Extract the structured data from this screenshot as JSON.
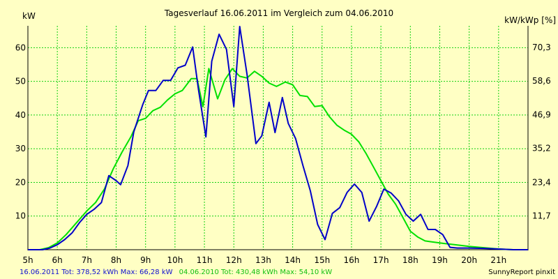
{
  "chart_data": {
    "type": "line",
    "title": "Tagesverlauf 16.06.2011 im Vergleich zum 04.06.2010",
    "ylabel_left": "kW",
    "ylabel_right": "kW/kWp [%]",
    "xlim": [
      5,
      22
    ],
    "ylim": [
      0,
      66.5
    ],
    "x_ticks": [
      "5h",
      "6h",
      "7h",
      "8h",
      "9h",
      "10h",
      "11h",
      "12h",
      "13h",
      "14h",
      "15h",
      "16h",
      "17h",
      "18h",
      "19h",
      "20h",
      "21h"
    ],
    "y_ticks_left": [
      "10",
      "20",
      "30",
      "40",
      "50",
      "60"
    ],
    "y_ticks_right": [
      {
        "label": "11,7",
        "kw": 10.0
      },
      {
        "label": "23,4",
        "kw": 20.0
      },
      {
        "label": "35,2",
        "kw": 30.1
      },
      {
        "label": "46,9",
        "kw": 40.1
      },
      {
        "label": "58,6",
        "kw": 50.1
      },
      {
        "label": "70,3",
        "kw": 60.1
      }
    ],
    "grid": true,
    "series": [
      {
        "name": "16.06.2011",
        "color": "#0000C8",
        "points": [
          [
            5.0,
            0.0
          ],
          [
            5.5,
            0.0
          ],
          [
            5.75,
            0.5
          ],
          [
            6.0,
            1.5
          ],
          [
            6.25,
            3.0
          ],
          [
            6.5,
            5.0
          ],
          [
            6.75,
            8.0
          ],
          [
            7.0,
            10.5
          ],
          [
            7.25,
            12.0
          ],
          [
            7.5,
            14.0
          ],
          [
            7.75,
            22.0
          ],
          [
            8.0,
            20.5
          ],
          [
            8.15,
            19.3
          ],
          [
            8.4,
            25.0
          ],
          [
            8.6,
            35.0
          ],
          [
            8.9,
            43.0
          ],
          [
            9.1,
            47.3
          ],
          [
            9.35,
            47.3
          ],
          [
            9.6,
            50.3
          ],
          [
            9.85,
            50.3
          ],
          [
            10.1,
            54.0
          ],
          [
            10.35,
            54.8
          ],
          [
            10.6,
            60.2
          ],
          [
            10.8,
            47.5
          ],
          [
            11.05,
            33.5
          ],
          [
            11.25,
            56.0
          ],
          [
            11.5,
            64.0
          ],
          [
            11.75,
            59.5
          ],
          [
            12.0,
            42.5
          ],
          [
            12.2,
            66.3
          ],
          [
            12.45,
            52.0
          ],
          [
            12.75,
            31.5
          ],
          [
            12.95,
            33.8
          ],
          [
            13.2,
            43.8
          ],
          [
            13.4,
            34.8
          ],
          [
            13.65,
            45.2
          ],
          [
            13.85,
            37.5
          ],
          [
            14.1,
            33.0
          ],
          [
            14.35,
            25.0
          ],
          [
            14.6,
            17.5
          ],
          [
            14.85,
            7.5
          ],
          [
            15.1,
            3.0
          ],
          [
            15.35,
            10.8
          ],
          [
            15.6,
            12.5
          ],
          [
            15.85,
            17.0
          ],
          [
            16.1,
            19.5
          ],
          [
            16.35,
            17.0
          ],
          [
            16.6,
            8.5
          ],
          [
            16.85,
            12.8
          ],
          [
            17.1,
            18.0
          ],
          [
            17.35,
            16.8
          ],
          [
            17.6,
            14.5
          ],
          [
            17.85,
            10.5
          ],
          [
            18.1,
            8.5
          ],
          [
            18.35,
            10.5
          ],
          [
            18.6,
            6.0
          ],
          [
            18.85,
            6.0
          ],
          [
            19.1,
            4.5
          ],
          [
            19.35,
            0.7
          ],
          [
            19.6,
            0.5
          ],
          [
            20.0,
            0.5
          ],
          [
            20.5,
            0.4
          ],
          [
            21.0,
            0.2
          ],
          [
            21.5,
            0.0
          ],
          [
            22.0,
            0.0
          ]
        ]
      },
      {
        "name": "04.06.2010",
        "color": "#00E000",
        "points": [
          [
            5.0,
            0.0
          ],
          [
            5.4,
            0.0
          ],
          [
            5.7,
            0.6
          ],
          [
            6.0,
            2.0
          ],
          [
            6.3,
            4.5
          ],
          [
            6.6,
            7.5
          ],
          [
            7.0,
            11.5
          ],
          [
            7.3,
            14.0
          ],
          [
            7.6,
            18.0
          ],
          [
            7.9,
            24.0
          ],
          [
            8.2,
            29.0
          ],
          [
            8.5,
            33.5
          ],
          [
            8.75,
            38.3
          ],
          [
            9.0,
            39.0
          ],
          [
            9.25,
            41.3
          ],
          [
            9.5,
            42.3
          ],
          [
            9.75,
            44.5
          ],
          [
            10.0,
            46.3
          ],
          [
            10.25,
            47.3
          ],
          [
            10.55,
            50.8
          ],
          [
            10.75,
            50.8
          ],
          [
            10.95,
            42.5
          ],
          [
            11.15,
            53.8
          ],
          [
            11.45,
            44.8
          ],
          [
            11.7,
            50.5
          ],
          [
            11.95,
            53.8
          ],
          [
            12.2,
            51.5
          ],
          [
            12.45,
            51.0
          ],
          [
            12.7,
            53.0
          ],
          [
            12.95,
            51.5
          ],
          [
            13.2,
            49.5
          ],
          [
            13.45,
            48.5
          ],
          [
            13.75,
            49.8
          ],
          [
            14.0,
            49.0
          ],
          [
            14.25,
            45.8
          ],
          [
            14.5,
            45.5
          ],
          [
            14.75,
            42.5
          ],
          [
            15.0,
            42.8
          ],
          [
            15.25,
            39.5
          ],
          [
            15.5,
            37.0
          ],
          [
            15.75,
            35.5
          ],
          [
            16.0,
            34.3
          ],
          [
            16.25,
            32.0
          ],
          [
            16.5,
            28.5
          ],
          [
            16.75,
            24.5
          ],
          [
            17.0,
            20.5
          ],
          [
            17.25,
            16.5
          ],
          [
            17.5,
            13.5
          ],
          [
            17.75,
            9.5
          ],
          [
            18.0,
            5.5
          ],
          [
            18.25,
            3.8
          ],
          [
            18.5,
            2.6
          ],
          [
            18.75,
            2.3
          ],
          [
            19.0,
            2.0
          ],
          [
            19.5,
            1.5
          ],
          [
            20.0,
            1.0
          ],
          [
            20.5,
            0.6
          ],
          [
            21.0,
            0.2
          ],
          [
            21.5,
            0.0
          ],
          [
            22.0,
            0.0
          ]
        ]
      }
    ]
  },
  "footer": {
    "series1_label": "16.06.2011 Tot: 378,52 kWh Max: 66,28 kW",
    "series2_label": "04.06.2010 Tot: 430,48 kWh Max: 54,10 kW",
    "credit": "SunnyReport pinxit"
  },
  "colors": {
    "background": "#FFFFC4",
    "grid": "#10D010",
    "axis": "#000000",
    "series1": "#0000C8",
    "series2": "#00E000"
  }
}
